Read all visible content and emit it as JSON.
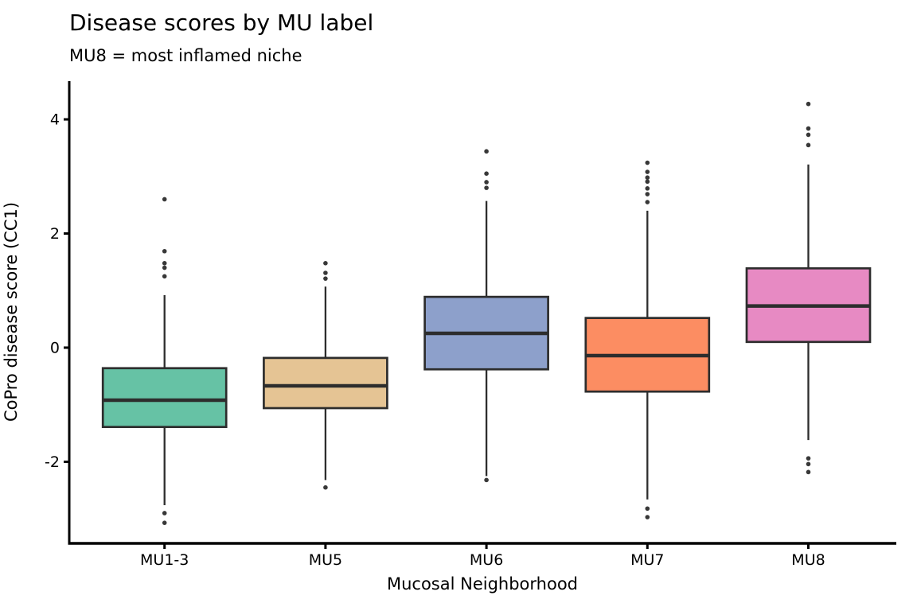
{
  "header": {
    "title": "Disease scores by MU label",
    "subtitle": "MU8 = most inflamed niche"
  },
  "chart_data": {
    "type": "boxplot",
    "title": "Disease scores by MU label",
    "subtitle": "MU8 = most inflamed niche",
    "xlabel": "Mucosal Neighborhood",
    "ylabel": "CoPro disease score (CC1)",
    "categories": [
      "MU1-3",
      "MU5",
      "MU6",
      "MU7",
      "MU8"
    ],
    "yticks": [
      -2,
      0,
      2,
      4
    ],
    "ylim": [
      -3.43,
      4.67
    ],
    "grid": false,
    "legend": "none",
    "colors": {
      "edge": "#2d2d2d",
      "median": "#2d2d2d",
      "whisker": "#2d2d2d",
      "flier": "#383838",
      "spine": "#000000"
    },
    "series": [
      {
        "label": "MU1-3",
        "fill": "#66c2a5",
        "whislo": -2.76,
        "q1": -1.39,
        "med": -0.92,
        "q3": -0.36,
        "whishi": 0.92,
        "fliers_high": [
          2.6,
          1.69,
          1.48,
          1.4,
          1.25
        ],
        "fliers_low": [
          -2.9,
          -3.07
        ]
      },
      {
        "label": "MU5",
        "fill": "#e5c494",
        "whislo": -2.32,
        "q1": -1.06,
        "med": -0.67,
        "q3": -0.18,
        "whishi": 1.07,
        "fliers_high": [
          1.48,
          1.31,
          1.21
        ],
        "fliers_low": [
          -2.45
        ]
      },
      {
        "label": "MU6",
        "fill": "#8da0cb",
        "whislo": -2.25,
        "q1": -0.38,
        "med": 0.25,
        "q3": 0.89,
        "whishi": 2.57,
        "fliers_high": [
          3.44,
          3.05,
          2.9,
          2.8
        ],
        "fliers_low": [
          -2.32
        ]
      },
      {
        "label": "MU7",
        "fill": "#fc8d62",
        "whislo": -2.66,
        "q1": -0.77,
        "med": -0.14,
        "q3": 0.52,
        "whishi": 2.4,
        "fliers_high": [
          3.24,
          3.08,
          2.98,
          2.91,
          2.79,
          2.69,
          2.55
        ],
        "fliers_low": [
          -2.82,
          -2.97
        ]
      },
      {
        "label": "MU8",
        "fill": "#e78ac3",
        "whislo": -1.62,
        "q1": 0.1,
        "med": 0.73,
        "q3": 1.39,
        "whishi": 3.21,
        "fliers_high": [
          4.27,
          3.84,
          3.73,
          3.55
        ],
        "fliers_low": [
          -1.94,
          -2.04,
          -2.18
        ]
      }
    ]
  }
}
